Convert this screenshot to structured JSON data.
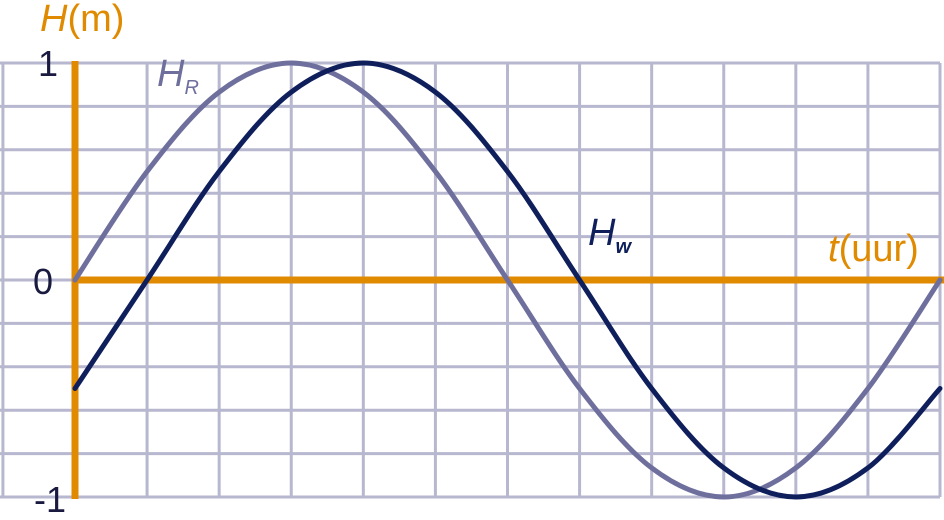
{
  "chart_data": {
    "type": "line",
    "ylabel_symbol": "H",
    "ylabel_unit": "(m)",
    "xlabel_symbol": "t",
    "xlabel_unit": "(uur)",
    "y_ticks": [
      "1",
      "0",
      "-1"
    ],
    "ylim": [
      -1,
      1
    ],
    "xlim": [
      0,
      12
    ],
    "grid": true,
    "series": [
      {
        "name": "H_R",
        "label_main": "H",
        "label_sub": "R",
        "color": "#6e6f9d",
        "x": [
          0,
          1,
          2,
          3,
          4,
          5,
          6,
          7,
          8,
          9,
          10,
          11,
          12
        ],
        "y": [
          0,
          0.5,
          0.866,
          1,
          0.866,
          0.5,
          0,
          -0.5,
          -0.866,
          -1,
          -0.866,
          -0.5,
          0
        ]
      },
      {
        "name": "H_w",
        "label_main": "H",
        "label_sub": "w",
        "color": "#0f1f5c",
        "x": [
          0,
          1,
          2,
          3,
          4,
          5,
          6,
          7,
          8,
          9,
          10,
          11,
          12
        ],
        "y": [
          -0.5,
          0,
          0.5,
          0.866,
          1,
          0.866,
          0.5,
          0,
          -0.5,
          -0.866,
          -1,
          -0.866,
          -0.5
        ]
      }
    ],
    "axis_color": "#e08a00",
    "grid_color": "#b7b7cf"
  }
}
